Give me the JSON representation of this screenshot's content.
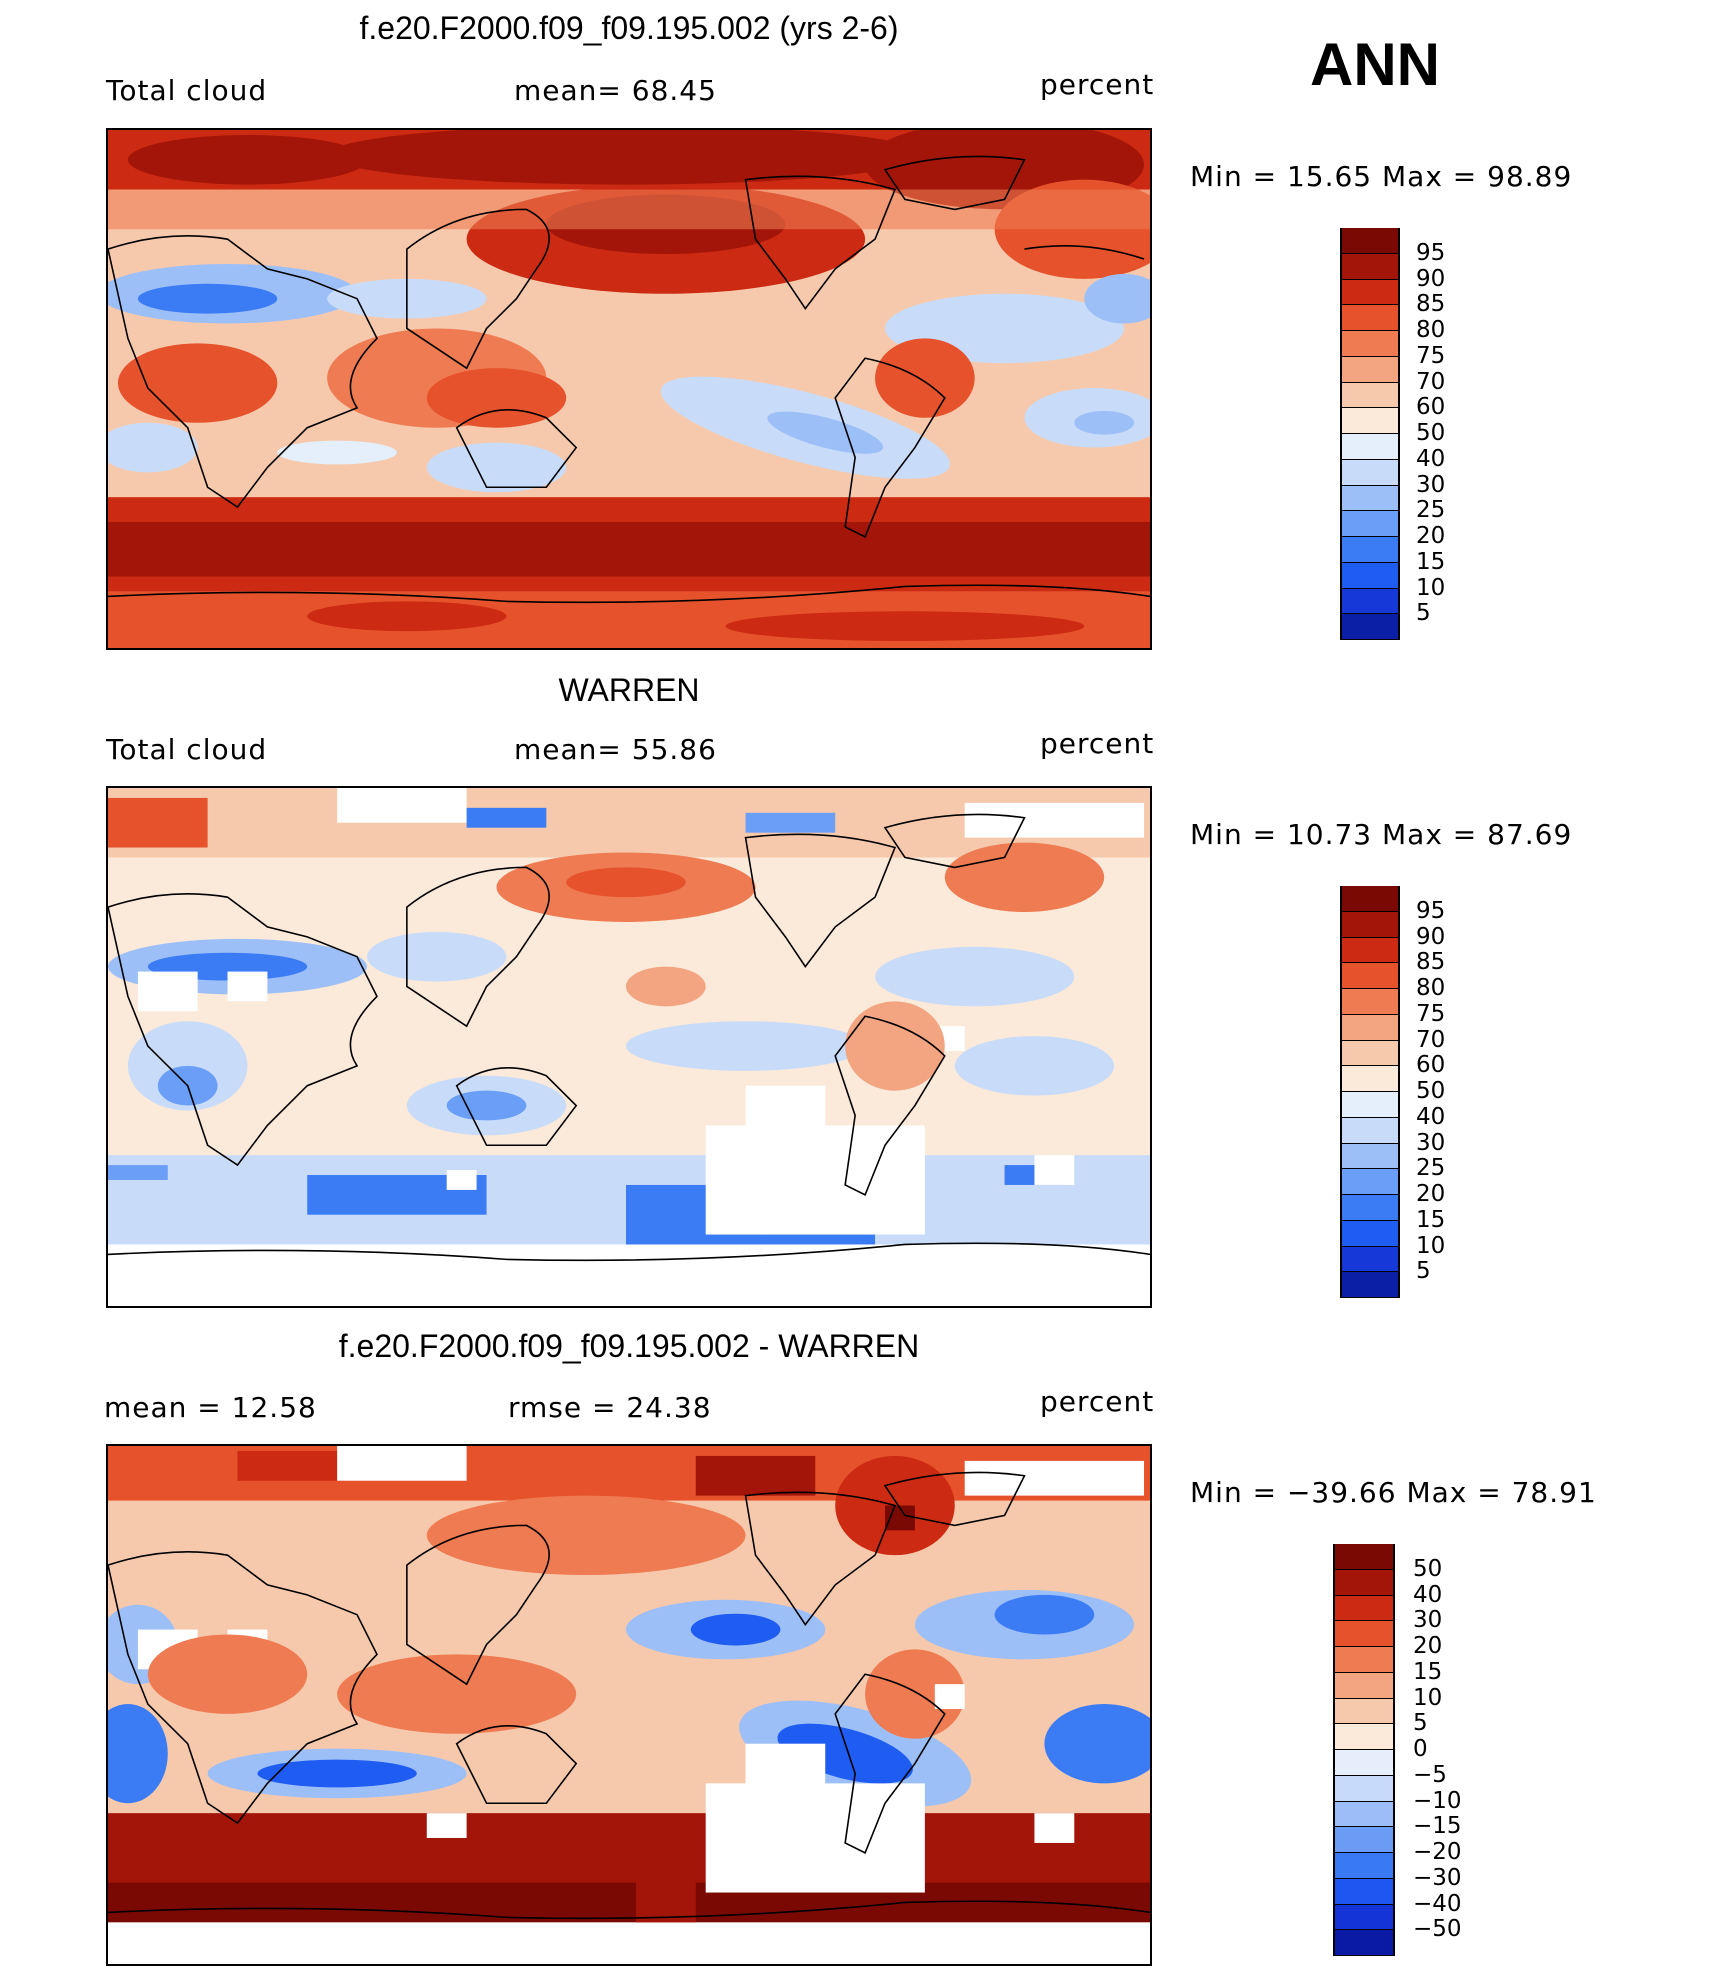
{
  "season": "ANN",
  "colors": {
    "absolute_scale": [
      "#08086b",
      "#0b1fa6",
      "#1538d6",
      "#1e5cf2",
      "#3b7cf5",
      "#6a9ef7",
      "#9dbff8",
      "#c8dcf9",
      "#e5eefb",
      "#fbe9da",
      "#f7c9ac",
      "#f3a582",
      "#ef7b52",
      "#e6522c",
      "#cc2a12",
      "#a31509",
      "#7a0904"
    ],
    "diff_scale": [
      "#07066b",
      "#0a1aa5",
      "#1434d7",
      "#1d56f0",
      "#3a79f4",
      "#6a9cf6",
      "#9cbdf8",
      "#c7daf9",
      "#e6eefb",
      "#fbe9da",
      "#f7c9ac",
      "#f3a582",
      "#ef7b52",
      "#e6522c",
      "#cc2a12",
      "#a31509",
      "#7a0904"
    ]
  },
  "panels": [
    {
      "title": "f.e20.F2000.f09_f09.195.002 (yrs 2-6)",
      "left_label": "Total cloud",
      "mid_label": "mean=   68.45",
      "right_label": "percent",
      "min_label": "Min  =    15.65  Max  =    98.89",
      "levels": [
        "95",
        "90",
        "85",
        "80",
        "75",
        "70",
        "60",
        "50",
        "40",
        "30",
        "25",
        "20",
        "15",
        "10",
        "5"
      ]
    },
    {
      "title": "WARREN",
      "left_label": "Total cloud",
      "mid_label": "mean=   55.86",
      "right_label": "percent",
      "min_label": "Min  =    10.73  Max  =    87.69",
      "levels": [
        "95",
        "90",
        "85",
        "80",
        "75",
        "70",
        "60",
        "50",
        "40",
        "30",
        "25",
        "20",
        "15",
        "10",
        "5"
      ]
    },
    {
      "title": "f.e20.F2000.f09_f09.195.002 - WARREN",
      "left_label": "mean  =    12.58",
      "mid_label": "rmse  =    24.38",
      "right_label": "percent",
      "min_label": "Min  = −39.66  Max  =    78.91",
      "levels": [
        "50",
        "40",
        "30",
        "20",
        "15",
        "10",
        "5",
        "0",
        "−5",
        "−10",
        "−15",
        "−20",
        "−30",
        "−40",
        "−50"
      ]
    }
  ],
  "chart_data": [
    {
      "type": "heatmap",
      "title": "f.e20.F2000.f09_f09.195.002 (yrs 2-6)",
      "variable": "Total cloud",
      "units": "percent",
      "mean": 68.45,
      "min": 15.65,
      "max": 98.89,
      "contour_levels": [
        5,
        10,
        15,
        20,
        25,
        30,
        40,
        50,
        60,
        70,
        75,
        80,
        85,
        90,
        95
      ]
    },
    {
      "type": "heatmap",
      "title": "WARREN",
      "variable": "Total cloud",
      "units": "percent",
      "mean": 55.86,
      "min": 10.73,
      "max": 87.69,
      "contour_levels": [
        5,
        10,
        15,
        20,
        25,
        30,
        40,
        50,
        60,
        70,
        75,
        80,
        85,
        90,
        95
      ]
    },
    {
      "type": "heatmap",
      "title": "f.e20.F2000.f09_f09.195.002 - WARREN",
      "units": "percent",
      "mean": 12.58,
      "rmse": 24.38,
      "min": -39.66,
      "max": 78.91,
      "contour_levels": [
        -50,
        -40,
        -30,
        -20,
        -15,
        -10,
        -5,
        0,
        5,
        10,
        15,
        20,
        30,
        40,
        50
      ]
    }
  ]
}
